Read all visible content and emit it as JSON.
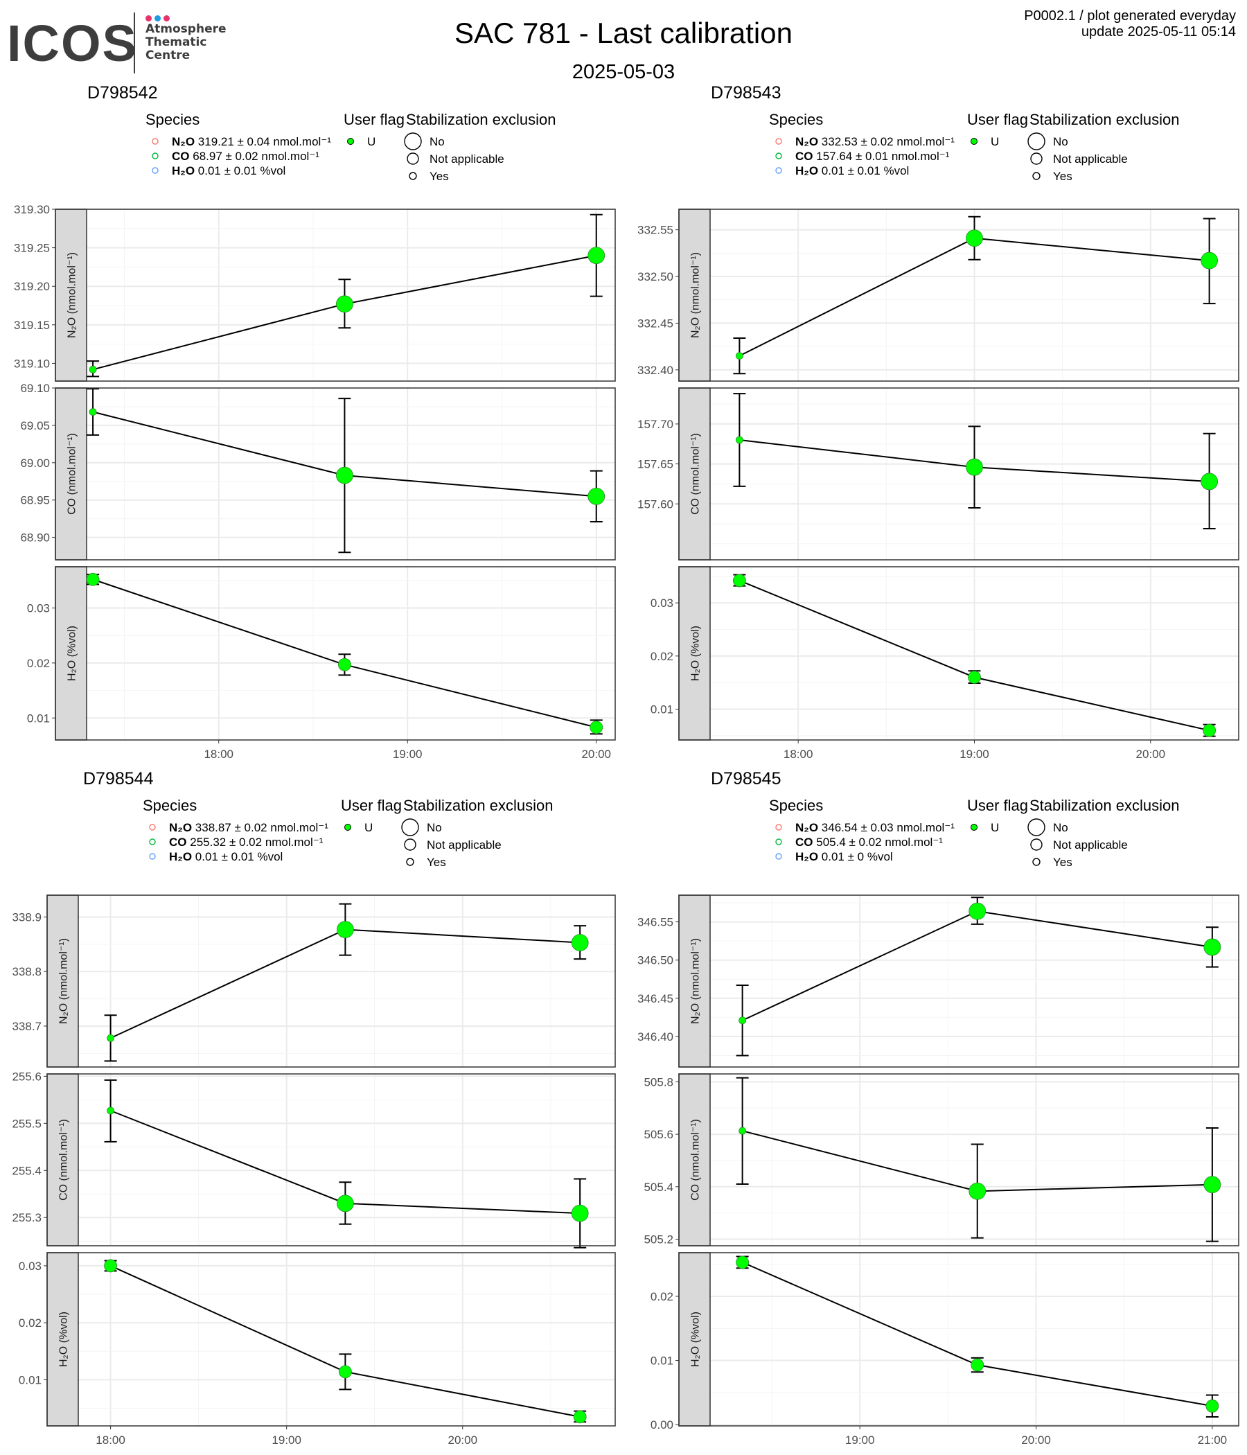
{
  "header": {
    "logo_text": "ICOS",
    "logo_subtitle": "Atmosphere\nThematic\nCentre",
    "logo_dot_colors": [
      "#e6336e",
      "#1e9be3",
      "#e6336e"
    ],
    "title": "SAC 781 - Last calibration",
    "subtitle": "2025-05-03",
    "update_line1": "P0002.1 / plot generated everyday",
    "update_line2": "update  2025-05-11 05:14"
  },
  "legend_labels": {
    "species_title": "Species",
    "user_flag_title": "User flag",
    "stabilization_title": "Stabilization exclusion",
    "user_flag_value": "U",
    "stabilization_values": [
      "No",
      "Not applicable",
      "Yes"
    ]
  },
  "colors": {
    "point_fill": "#00ff00",
    "n2o_legend": "#f8766d",
    "co_legend": "#00ba38",
    "h2o_legend": "#619cff",
    "strip_bg": "#d9d9d9"
  },
  "chart_data": [
    {
      "type": "scatter",
      "title": "D798542",
      "legend": [
        {
          "species": "N₂O",
          "value": "319.21",
          "unc": "0.04",
          "unit": "nmol.mol⁻¹"
        },
        {
          "species": "CO",
          "value": "68.97",
          "unc": "0.02",
          "unit": "nmol.mol⁻¹"
        },
        {
          "species": "H₂O",
          "value": "0.01",
          "unc": "0.01",
          "unit": "%vol"
        }
      ],
      "x_ticks": [
        "18:00",
        "19:00",
        "20:00"
      ],
      "x_range": [
        "17:18",
        "20:06"
      ],
      "panels": [
        {
          "ylabel": "N₂O (nmol.mol⁻¹)",
          "yticks": [
            "319.10",
            "319.15",
            "319.20",
            "319.25",
            "319.30"
          ],
          "ylim": [
            319.077,
            319.3
          ],
          "points": [
            {
              "x": "17:20",
              "y": 319.092,
              "lo": 319.083,
              "hi": 319.103,
              "size": "small"
            },
            {
              "x": "18:40",
              "y": 319.177,
              "lo": 319.146,
              "hi": 319.209,
              "size": "large"
            },
            {
              "x": "20:00",
              "y": 319.24,
              "lo": 319.187,
              "hi": 319.293,
              "size": "large"
            }
          ]
        },
        {
          "ylabel": "CO (nmol.mol⁻¹)",
          "yticks": [
            "68.90",
            "68.95",
            "69.00",
            "69.05",
            "69.10"
          ],
          "ylim": [
            68.87,
            69.1
          ],
          "points": [
            {
              "x": "17:20",
              "y": 69.068,
              "lo": 69.037,
              "hi": 69.099,
              "size": "small"
            },
            {
              "x": "18:40",
              "y": 68.983,
              "lo": 68.88,
              "hi": 69.086,
              "size": "large"
            },
            {
              "x": "20:00",
              "y": 68.955,
              "lo": 68.921,
              "hi": 68.989,
              "size": "large"
            }
          ]
        },
        {
          "ylabel": "H₂O (%vol)",
          "yticks": [
            "0.01",
            "0.02",
            "0.03"
          ],
          "ylim": [
            0.006,
            0.0375
          ],
          "points": [
            {
              "x": "17:20",
              "y": 0.0352,
              "lo": 0.0343,
              "hi": 0.0361,
              "size": "medium"
            },
            {
              "x": "18:40",
              "y": 0.0197,
              "lo": 0.0178,
              "hi": 0.0216,
              "size": "medium"
            },
            {
              "x": "20:00",
              "y": 0.0083,
              "lo": 0.0071,
              "hi": 0.0096,
              "size": "medium"
            }
          ]
        }
      ]
    },
    {
      "type": "scatter",
      "title": "D798543",
      "legend": [
        {
          "species": "N₂O",
          "value": "332.53",
          "unc": "0.02",
          "unit": "nmol.mol⁻¹"
        },
        {
          "species": "CO",
          "value": "157.64",
          "unc": "0.01",
          "unit": "nmol.mol⁻¹"
        },
        {
          "species": "H₂O",
          "value": "0.01",
          "unc": "0.01",
          "unit": "%vol"
        }
      ],
      "x_ticks": [
        "18:00",
        "19:00",
        "20:00"
      ],
      "x_range": [
        "17:30",
        "20:30"
      ],
      "panels": [
        {
          "ylabel": "N₂O (nmol.mol⁻¹)",
          "yticks": [
            "332.40",
            "332.45",
            "332.50",
            "332.55"
          ],
          "ylim": [
            332.388,
            332.572
          ],
          "points": [
            {
              "x": "17:40",
              "y": 332.415,
              "lo": 332.396,
              "hi": 332.434,
              "size": "small"
            },
            {
              "x": "19:00",
              "y": 332.541,
              "lo": 332.518,
              "hi": 332.564,
              "size": "large"
            },
            {
              "x": "20:20",
              "y": 332.517,
              "lo": 332.471,
              "hi": 332.562,
              "size": "large"
            }
          ]
        },
        {
          "ylabel": "CO (nmol.mol⁻¹)",
          "yticks": [
            "157.60",
            "157.65",
            "157.70"
          ],
          "ylim": [
            157.53,
            157.745
          ],
          "points": [
            {
              "x": "17:40",
              "y": 157.68,
              "lo": 157.622,
              "hi": 157.738,
              "size": "small"
            },
            {
              "x": "19:00",
              "y": 157.646,
              "lo": 157.595,
              "hi": 157.697,
              "size": "large"
            },
            {
              "x": "20:20",
              "y": 157.628,
              "lo": 157.569,
              "hi": 157.688,
              "size": "large"
            }
          ]
        },
        {
          "ylabel": "H₂O (%vol)",
          "yticks": [
            "0.01",
            "0.02",
            "0.03"
          ],
          "ylim": [
            0.0042,
            0.0368
          ],
          "points": [
            {
              "x": "17:40",
              "y": 0.0342,
              "lo": 0.0332,
              "hi": 0.0353,
              "size": "medium"
            },
            {
              "x": "19:00",
              "y": 0.016,
              "lo": 0.0149,
              "hi": 0.0172,
              "size": "medium"
            },
            {
              "x": "20:20",
              "y": 0.006,
              "lo": 0.0049,
              "hi": 0.0071,
              "size": "medium"
            }
          ]
        }
      ]
    },
    {
      "type": "scatter",
      "title": "D798544",
      "legend": [
        {
          "species": "N₂O",
          "value": "338.87",
          "unc": "0.02",
          "unit": "nmol.mol⁻¹"
        },
        {
          "species": "CO",
          "value": "255.32",
          "unc": "0.02",
          "unit": "nmol.mol⁻¹"
        },
        {
          "species": "H₂O",
          "value": "0.01",
          "unc": "0.01",
          "unit": "%vol"
        }
      ],
      "x_ticks": [
        "18:00",
        "19:00",
        "20:00"
      ],
      "x_range": [
        "17:49",
        "20:52"
      ],
      "panels": [
        {
          "ylabel": "N₂O (nmol.mol⁻¹)",
          "yticks": [
            "338.7",
            "338.8",
            "338.9"
          ],
          "ylim": [
            338.625,
            338.94
          ],
          "points": [
            {
              "x": "18:00",
              "y": 338.678,
              "lo": 338.636,
              "hi": 338.72,
              "size": "small"
            },
            {
              "x": "19:20",
              "y": 338.877,
              "lo": 338.83,
              "hi": 338.924,
              "size": "large"
            },
            {
              "x": "20:40",
              "y": 338.853,
              "lo": 338.823,
              "hi": 338.884,
              "size": "large"
            }
          ]
        },
        {
          "ylabel": "CO (nmol.mol⁻¹)",
          "yticks": [
            "255.3",
            "255.4",
            "255.5",
            "255.6"
          ],
          "ylim": [
            255.24,
            255.605
          ],
          "points": [
            {
              "x": "18:00",
              "y": 255.527,
              "lo": 255.461,
              "hi": 255.592,
              "size": "small"
            },
            {
              "x": "19:20",
              "y": 255.33,
              "lo": 255.286,
              "hi": 255.375,
              "size": "large"
            },
            {
              "x": "20:40",
              "y": 255.309,
              "lo": 255.236,
              "hi": 255.382,
              "size": "large"
            }
          ]
        },
        {
          "ylabel": "H₂O (%vol)",
          "yticks": [
            "0.01",
            "0.02",
            "0.03"
          ],
          "ylim": [
            0.0019,
            0.0323
          ],
          "points": [
            {
              "x": "18:00",
              "y": 0.03,
              "lo": 0.0291,
              "hi": 0.0309,
              "size": "medium"
            },
            {
              "x": "19:20",
              "y": 0.0114,
              "lo": 0.0083,
              "hi": 0.0145,
              "size": "medium"
            },
            {
              "x": "20:40",
              "y": 0.0035,
              "lo": 0.0026,
              "hi": 0.0045,
              "size": "medium"
            }
          ]
        }
      ]
    },
    {
      "type": "scatter",
      "title": "D798545",
      "legend": [
        {
          "species": "N₂O",
          "value": "346.54",
          "unc": "0.03",
          "unit": "nmol.mol⁻¹"
        },
        {
          "species": "CO",
          "value": "505.4",
          "unc": "0.02",
          "unit": "nmol.mol⁻¹"
        },
        {
          "species": "H₂O",
          "value": "0.01",
          "unc": "0",
          "unit": "%vol"
        }
      ],
      "x_ticks": [
        "19:00",
        "20:00",
        "21:00"
      ],
      "x_range": [
        "18:09",
        "21:09"
      ],
      "panels": [
        {
          "ylabel": "N₂O (nmol.mol⁻¹)",
          "yticks": [
            "346.40",
            "346.45",
            "346.50",
            "346.55"
          ],
          "ylim": [
            346.36,
            346.585
          ],
          "points": [
            {
              "x": "18:20",
              "y": 346.421,
              "lo": 346.375,
              "hi": 346.467,
              "size": "small"
            },
            {
              "x": "19:40",
              "y": 346.564,
              "lo": 346.547,
              "hi": 346.582,
              "size": "large"
            },
            {
              "x": "21:00",
              "y": 346.517,
              "lo": 346.491,
              "hi": 346.543,
              "size": "large"
            }
          ]
        },
        {
          "ylabel": "CO (nmol.mol⁻¹)",
          "yticks": [
            "505.2",
            "505.4",
            "505.6",
            "505.8"
          ],
          "ylim": [
            505.175,
            505.83
          ],
          "points": [
            {
              "x": "18:20",
              "y": 505.613,
              "lo": 505.41,
              "hi": 505.815,
              "size": "small"
            },
            {
              "x": "19:40",
              "y": 505.383,
              "lo": 505.205,
              "hi": 505.562,
              "size": "large"
            },
            {
              "x": "21:00",
              "y": 505.408,
              "lo": 505.192,
              "hi": 505.624,
              "size": "large"
            }
          ]
        },
        {
          "ylabel": "H₂O (%vol)",
          "yticks": [
            "0.00",
            "0.01",
            "0.02"
          ],
          "ylim": [
            -0.0002,
            0.0268
          ],
          "points": [
            {
              "x": "18:20",
              "y": 0.0253,
              "lo": 0.0244,
              "hi": 0.0262,
              "size": "medium"
            },
            {
              "x": "19:40",
              "y": 0.0093,
              "lo": 0.0082,
              "hi": 0.0104,
              "size": "medium"
            },
            {
              "x": "21:00",
              "y": 0.0029,
              "lo": 0.0012,
              "hi": 0.0046,
              "size": "medium"
            }
          ]
        }
      ]
    }
  ]
}
